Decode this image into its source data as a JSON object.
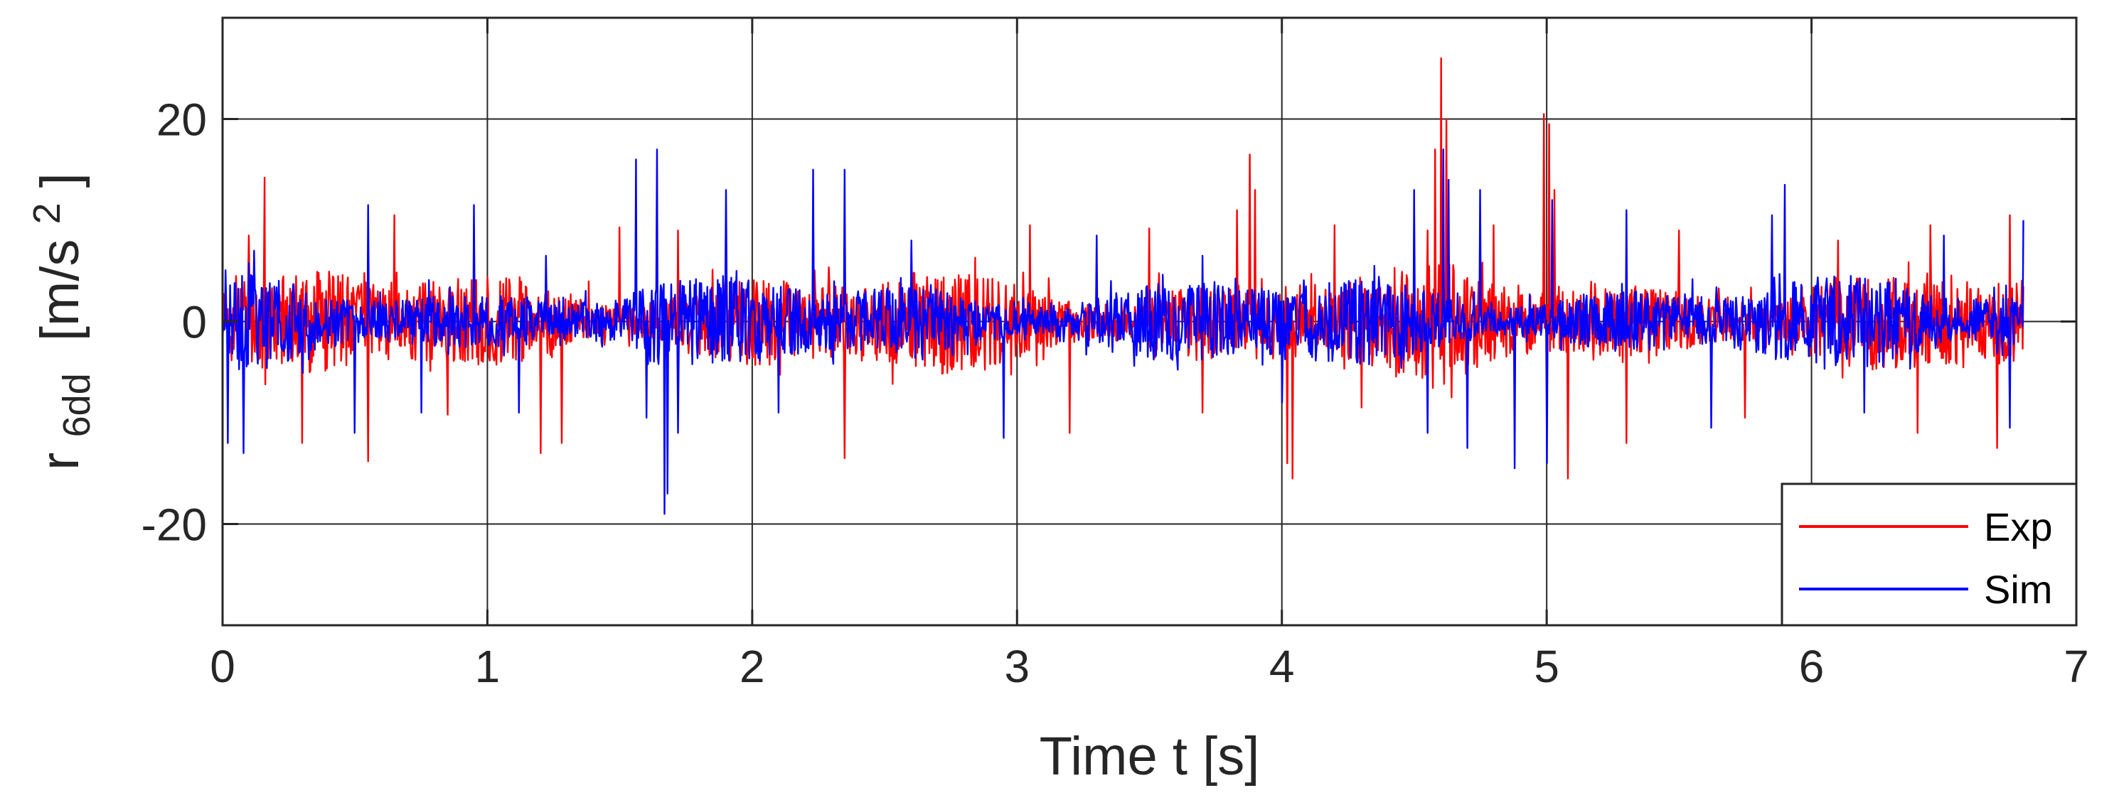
{
  "chart_data": {
    "type": "line",
    "title": "",
    "xlabel": "Time  t  [s]",
    "ylabel": {
      "base": "r",
      "subscript": "6dd",
      "units_prefix": "[m/s",
      "units_superscript": "2",
      "units_suffix": "]"
    },
    "xlim": [
      0,
      7
    ],
    "ylim": [
      -30,
      30
    ],
    "xticks": [
      0,
      1,
      2,
      3,
      4,
      5,
      6,
      7
    ],
    "yticks": [
      -20,
      0,
      20
    ],
    "xtick_labels": [
      "0",
      "1",
      "2",
      "3",
      "4",
      "5",
      "6",
      "7"
    ],
    "ytick_labels": [
      "-20",
      "0",
      "20"
    ],
    "grid": true,
    "legend_position": "bottom-right",
    "series": [
      {
        "name": "Exp",
        "color": "#ff0000",
        "x_start": 0,
        "x_end": 6.8,
        "noise_amplitude": 3.6,
        "peaks": [
          [
            0.05,
            4.5
          ],
          [
            0.1,
            8.5
          ],
          [
            0.16,
            14.2
          ],
          [
            0.3,
            -12.0
          ],
          [
            0.55,
            -13.8
          ],
          [
            0.65,
            10.5
          ],
          [
            0.85,
            -9.2
          ],
          [
            1.2,
            -13.0
          ],
          [
            1.28,
            -12.0
          ],
          [
            1.5,
            9.3
          ],
          [
            1.72,
            9.0
          ],
          [
            2.35,
            -13.5
          ],
          [
            2.6,
            7.5
          ],
          [
            3.05,
            9.5
          ],
          [
            3.2,
            -11.0
          ],
          [
            3.5,
            9.2
          ],
          [
            3.7,
            -9.0
          ],
          [
            3.83,
            11.0
          ],
          [
            3.88,
            16.5
          ],
          [
            3.9,
            13.0
          ],
          [
            4.02,
            -14.0
          ],
          [
            4.04,
            -15.5
          ],
          [
            4.2,
            9.5
          ],
          [
            4.3,
            -8.5
          ],
          [
            4.55,
            9.0
          ],
          [
            4.58,
            17.0
          ],
          [
            4.6,
            26.0
          ],
          [
            4.62,
            20.0
          ],
          [
            4.64,
            -7.5
          ],
          [
            4.8,
            9.5
          ],
          [
            4.99,
            20.5
          ],
          [
            5.01,
            19.5
          ],
          [
            5.03,
            13.0
          ],
          [
            5.08,
            -15.5
          ],
          [
            5.3,
            -12.0
          ],
          [
            5.5,
            9.0
          ],
          [
            5.75,
            -9.5
          ],
          [
            6.1,
            8.0
          ],
          [
            6.4,
            -11.0
          ],
          [
            6.45,
            9.5
          ],
          [
            6.7,
            -12.5
          ],
          [
            6.75,
            10.5
          ]
        ]
      },
      {
        "name": "Sim",
        "color": "#0000ff",
        "x_start": 0,
        "x_end": 6.8,
        "noise_amplitude": 3.0,
        "peaks": [
          [
            0.02,
            -12.0
          ],
          [
            0.08,
            -13.0
          ],
          [
            0.12,
            7.0
          ],
          [
            0.5,
            -11.0
          ],
          [
            0.55,
            11.5
          ],
          [
            0.75,
            -9.0
          ],
          [
            0.95,
            11.5
          ],
          [
            1.12,
            -9.0
          ],
          [
            1.22,
            6.5
          ],
          [
            1.56,
            16.0
          ],
          [
            1.6,
            -9.5
          ],
          [
            1.64,
            17.0
          ],
          [
            1.67,
            -19.0
          ],
          [
            1.68,
            -17.0
          ],
          [
            1.72,
            -11.0
          ],
          [
            1.9,
            13.0
          ],
          [
            2.1,
            -9.0
          ],
          [
            2.23,
            15.0
          ],
          [
            2.35,
            15.0
          ],
          [
            2.6,
            8.0
          ],
          [
            2.95,
            -11.5
          ],
          [
            3.3,
            8.5
          ],
          [
            3.7,
            6.5
          ],
          [
            4.0,
            -8.0
          ],
          [
            4.35,
            5.5
          ],
          [
            4.5,
            13.0
          ],
          [
            4.55,
            -11.0
          ],
          [
            4.61,
            17.0
          ],
          [
            4.63,
            14.0
          ],
          [
            4.7,
            -12.5
          ],
          [
            4.75,
            13.0
          ],
          [
            4.88,
            -14.5
          ],
          [
            5.0,
            -14.0
          ],
          [
            5.02,
            12.0
          ],
          [
            5.3,
            11.0
          ],
          [
            5.62,
            -10.5
          ],
          [
            5.85,
            10.5
          ],
          [
            5.9,
            13.5
          ],
          [
            6.2,
            -9.0
          ],
          [
            6.5,
            8.5
          ],
          [
            6.75,
            -10.5
          ],
          [
            6.8,
            10.0
          ]
        ]
      }
    ]
  }
}
